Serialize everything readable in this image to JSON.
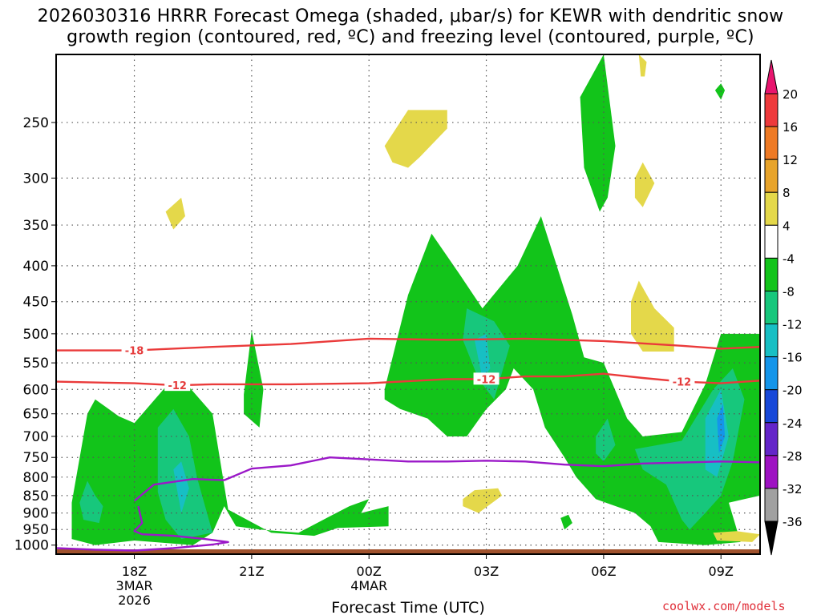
{
  "title": {
    "line1": "2026030316 HRRR Forecast Omega (shaded, μbar/s) for KEWR with dendritic snow",
    "line2": "growth region (contoured, red, ºC) and freezing level (contoured, purple, ºC)"
  },
  "credit": "coolwx.com/models",
  "chart_data": {
    "type": "contour",
    "title": "2026030316 HRRR Forecast Omega (shaded, μbar/s) for KEWR with dendritic snow growth region (contoured, red, ºC) and freezing level (contoured, purple, ºC)",
    "xlabel": "Forecast Time (UTC)",
    "ylabel": "",
    "x_ticks": [
      {
        "hour": 18,
        "lines": [
          "18Z",
          "3MAR",
          "2026"
        ]
      },
      {
        "hour": 21,
        "lines": [
          "21Z"
        ]
      },
      {
        "hour": 24,
        "lines": [
          "00Z",
          "4MAR"
        ]
      },
      {
        "hour": 27,
        "lines": [
          "03Z"
        ]
      },
      {
        "hour": 30,
        "lines": [
          "06Z"
        ]
      },
      {
        "hour": 33,
        "lines": [
          "09Z"
        ]
      }
    ],
    "xlim": [
      16,
      34
    ],
    "y_scale": "pressure (hPa), inverted",
    "y_ticks": [
      250,
      300,
      350,
      400,
      450,
      500,
      550,
      600,
      650,
      700,
      750,
      800,
      850,
      900,
      950,
      1000
    ],
    "ylim": [
      1030,
      200
    ],
    "grid": true,
    "colorbar": {
      "levels": [
        20,
        16,
        12,
        8,
        4,
        -4,
        -8,
        -12,
        -16,
        -20,
        -24,
        -28,
        -32,
        -36
      ],
      "colors": [
        "#e8156e",
        "#ee3a3c",
        "#ee7a25",
        "#e8a42b",
        "#e4d84a",
        "#ffffff",
        "#12c41a",
        "#17c77c",
        "#17bfc4",
        "#1495ea",
        "#1848d8",
        "#6425c9",
        "#9e12c2",
        "#a0a0a0",
        "#000000"
      ]
    },
    "contours": [
      {
        "name": "-18",
        "color": "#ea3a3a",
        "label_at_hour": 18,
        "points": [
          [
            16,
            528
          ],
          [
            18,
            528
          ],
          [
            20,
            522
          ],
          [
            22,
            517
          ],
          [
            24,
            508
          ],
          [
            26,
            510
          ],
          [
            28,
            508
          ],
          [
            30,
            512
          ],
          [
            32,
            520
          ],
          [
            33,
            525
          ],
          [
            34,
            522
          ]
        ]
      },
      {
        "name": "-12",
        "color": "#ea3a3a",
        "label_at_hours": [
          19.1,
          27,
          32
        ],
        "points": [
          [
            16,
            585
          ],
          [
            18,
            588
          ],
          [
            19.1,
            592
          ],
          [
            20,
            590
          ],
          [
            22,
            590
          ],
          [
            24,
            588
          ],
          [
            26,
            580
          ],
          [
            27,
            580
          ],
          [
            28,
            575
          ],
          [
            29,
            575
          ],
          [
            30,
            570
          ],
          [
            31,
            578
          ],
          [
            32,
            585
          ],
          [
            33,
            588
          ],
          [
            34,
            583
          ]
        ]
      },
      {
        "name": "freezing level 0",
        "color": "#9b18c8",
        "points": [
          [
            18,
            865
          ],
          [
            18.5,
            820
          ],
          [
            19.5,
            805
          ],
          [
            20.3,
            808
          ],
          [
            21,
            778
          ],
          [
            22,
            770
          ],
          [
            23,
            750
          ],
          [
            24,
            755
          ],
          [
            25,
            760
          ],
          [
            26,
            760
          ],
          [
            27,
            758
          ],
          [
            28,
            760
          ],
          [
            29,
            768
          ],
          [
            30,
            772
          ],
          [
            31,
            765
          ],
          [
            33,
            760
          ],
          [
            34,
            762
          ]
        ]
      },
      {
        "name": "freezing level 0 (surface)",
        "color": "#9b18c8",
        "points": [
          [
            16,
            1010
          ],
          [
            17,
            1015
          ],
          [
            18,
            1018
          ],
          [
            19,
            1010
          ],
          [
            20,
            998
          ],
          [
            20.4,
            990
          ],
          [
            19.8,
            980
          ],
          [
            19,
            970
          ],
          [
            18.2,
            965
          ],
          [
            18,
            955
          ],
          [
            18.2,
            930
          ],
          [
            18.1,
            880
          ]
        ]
      }
    ],
    "shaded_regions": [
      {
        "level": "-8",
        "color": "#12c41a",
        "points": [
          [
            16.4,
            870
          ],
          [
            16.8,
            650
          ],
          [
            17,
            620
          ],
          [
            17.6,
            655
          ],
          [
            18,
            670
          ],
          [
            18.8,
            595
          ],
          [
            19.4,
            595
          ],
          [
            20,
            650
          ],
          [
            20.4,
            890
          ],
          [
            21.5,
            960
          ],
          [
            22.6,
            970
          ],
          [
            23.2,
            945
          ],
          [
            24.5,
            940
          ],
          [
            24.5,
            880
          ],
          [
            23.8,
            900
          ],
          [
            24,
            860
          ],
          [
            23.5,
            880
          ],
          [
            23,
            910
          ],
          [
            22.2,
            960
          ],
          [
            21.2,
            950
          ],
          [
            20.6,
            940
          ],
          [
            20.3,
            880
          ],
          [
            20,
            960
          ],
          [
            19.5,
            1000
          ],
          [
            18,
            985
          ],
          [
            17,
            1000
          ],
          [
            16.4,
            980
          ]
        ]
      },
      {
        "level": "-8",
        "color": "#12c41a",
        "points": [
          [
            20.8,
            610
          ],
          [
            21,
            495
          ],
          [
            21.3,
            600
          ],
          [
            21.2,
            680
          ],
          [
            20.8,
            650
          ]
        ]
      },
      {
        "level": "-8",
        "color": "#12c41a",
        "points": [
          [
            24.4,
            600
          ],
          [
            25,
            440
          ],
          [
            25.6,
            360
          ],
          [
            26.3,
            410
          ],
          [
            26.9,
            460
          ],
          [
            27.8,
            400
          ],
          [
            28.4,
            340
          ],
          [
            29.2,
            470
          ],
          [
            29.5,
            540
          ],
          [
            30,
            550
          ],
          [
            30.6,
            660
          ],
          [
            31,
            700
          ],
          [
            32,
            690
          ],
          [
            32.6,
            590
          ],
          [
            33,
            500
          ],
          [
            34,
            500
          ],
          [
            34,
            850
          ],
          [
            33.6,
            860
          ],
          [
            33.2,
            870
          ],
          [
            33.5,
            990
          ],
          [
            32.6,
            1000
          ],
          [
            31.4,
            990
          ],
          [
            31.2,
            940
          ],
          [
            30.8,
            900
          ],
          [
            29.8,
            860
          ],
          [
            29.3,
            800
          ],
          [
            29,
            750
          ],
          [
            28.5,
            680
          ],
          [
            28.2,
            600
          ],
          [
            27.7,
            560
          ],
          [
            27.5,
            600
          ],
          [
            27,
            640
          ],
          [
            26.5,
            700
          ],
          [
            26,
            700
          ],
          [
            25.5,
            660
          ],
          [
            24.8,
            640
          ],
          [
            24.4,
            620
          ]
        ]
      },
      {
        "level": "-8",
        "color": "#12c41a",
        "points": [
          [
            28.9,
            915
          ],
          [
            29.1,
            905
          ],
          [
            29.2,
            930
          ],
          [
            29,
            950
          ]
        ]
      },
      {
        "level": "-8",
        "color": "#12c41a",
        "points": [
          [
            29.4,
            230
          ],
          [
            30,
            200
          ],
          [
            30.3,
            270
          ],
          [
            30.1,
            320
          ],
          [
            29.9,
            335
          ],
          [
            29.5,
            290
          ]
        ]
      },
      {
        "level": "-8",
        "color": "#12c41a",
        "points": [
          [
            32.85,
            225
          ],
          [
            33,
            220
          ],
          [
            33.1,
            225
          ],
          [
            33,
            232
          ]
        ]
      },
      {
        "level": "-12",
        "color": "#17c77c",
        "points": [
          [
            26.5,
            460
          ],
          [
            27.2,
            480
          ],
          [
            27.6,
            520
          ],
          [
            27.2,
            620
          ],
          [
            26.8,
            580
          ],
          [
            26.4,
            510
          ]
        ]
      },
      {
        "level": "-12",
        "color": "#17c77c",
        "points": [
          [
            16.8,
            810
          ],
          [
            17,
            850
          ],
          [
            17.2,
            880
          ],
          [
            17.1,
            930
          ],
          [
            16.7,
            920
          ],
          [
            16.6,
            870
          ]
        ]
      },
      {
        "level": "-12",
        "color": "#17c77c",
        "points": [
          [
            18.6,
            680
          ],
          [
            19,
            640
          ],
          [
            19.4,
            700
          ],
          [
            19.6,
            800
          ],
          [
            20,
            960
          ],
          [
            19.2,
            980
          ],
          [
            18.8,
            920
          ],
          [
            18.6,
            840
          ]
        ]
      },
      {
        "level": "-12",
        "color": "#17c77c",
        "points": [
          [
            29.8,
            700
          ],
          [
            30.1,
            660
          ],
          [
            30.3,
            720
          ],
          [
            30,
            760
          ],
          [
            29.8,
            740
          ]
        ]
      },
      {
        "level": "-12",
        "color": "#17c77c",
        "points": [
          [
            30.8,
            730
          ],
          [
            32,
            710
          ],
          [
            32.8,
            600
          ],
          [
            33.3,
            560
          ],
          [
            33.6,
            620
          ],
          [
            33.3,
            760
          ],
          [
            33,
            850
          ],
          [
            32.6,
            900
          ],
          [
            32.2,
            950
          ],
          [
            32,
            920
          ],
          [
            31.6,
            820
          ],
          [
            31,
            780
          ]
        ]
      },
      {
        "level": "-16",
        "color": "#17bfc4",
        "points": [
          [
            26.7,
            510
          ],
          [
            27,
            500
          ],
          [
            27.1,
            560
          ],
          [
            26.9,
            580
          ]
        ]
      },
      {
        "level": "-16",
        "color": "#17bfc4",
        "points": [
          [
            19,
            780
          ],
          [
            19.2,
            760
          ],
          [
            19.4,
            830
          ],
          [
            19.2,
            900
          ]
        ]
      },
      {
        "level": "-16",
        "color": "#17bfc4",
        "points": [
          [
            32.6,
            660
          ],
          [
            33,
            600
          ],
          [
            33.2,
            700
          ],
          [
            32.9,
            800
          ],
          [
            32.6,
            780
          ]
        ]
      },
      {
        "level": "-20",
        "color": "#1495ea",
        "points": [
          [
            32.9,
            660
          ],
          [
            33.05,
            630
          ],
          [
            33.1,
            700
          ],
          [
            32.95,
            740
          ]
        ]
      },
      {
        "level": "4",
        "color": "#e4d84a",
        "points": [
          [
            24.4,
            270
          ],
          [
            25,
            240
          ],
          [
            26,
            240
          ],
          [
            26,
            255
          ],
          [
            25.3,
            280
          ],
          [
            25,
            290
          ],
          [
            24.6,
            285
          ]
        ]
      },
      {
        "level": "4",
        "color": "#e4d84a",
        "points": [
          [
            18.8,
            335
          ],
          [
            19.2,
            320
          ],
          [
            19.3,
            340
          ],
          [
            19,
            355
          ]
        ]
      },
      {
        "level": "4",
        "color": "#e4d84a",
        "points": [
          [
            30.9,
            200
          ],
          [
            31.1,
            205
          ],
          [
            31.05,
            215
          ],
          [
            30.95,
            215
          ]
        ]
      },
      {
        "level": "4",
        "color": "#e4d84a",
        "points": [
          [
            30.8,
            300
          ],
          [
            31,
            285
          ],
          [
            31.3,
            305
          ],
          [
            31,
            330
          ],
          [
            30.8,
            320
          ]
        ]
      },
      {
        "level": "4",
        "color": "#e4d84a",
        "points": [
          [
            30.7,
            450
          ],
          [
            30.9,
            420
          ],
          [
            31.3,
            460
          ],
          [
            31.8,
            490
          ],
          [
            31.8,
            530
          ],
          [
            31,
            530
          ],
          [
            30.7,
            500
          ]
        ]
      },
      {
        "level": "4",
        "color": "#e4d84a",
        "points": [
          [
            26.4,
            860
          ],
          [
            26.7,
            835
          ],
          [
            27.3,
            830
          ],
          [
            27.4,
            850
          ],
          [
            26.8,
            900
          ],
          [
            26.4,
            880
          ]
        ]
      },
      {
        "level": "4",
        "color": "#e4d84a",
        "points": [
          [
            32.8,
            960
          ],
          [
            33.4,
            955
          ],
          [
            34,
            965
          ],
          [
            33.8,
            990
          ],
          [
            32.9,
            985
          ]
        ]
      }
    ]
  }
}
